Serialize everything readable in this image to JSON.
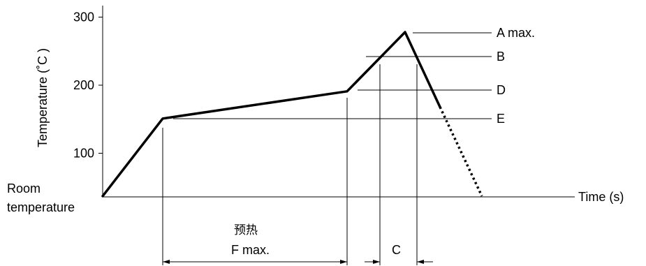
{
  "chart_data": {
    "type": "line",
    "title": "",
    "ylabel": "Temperature (˚C )",
    "xlabel": "Time (s)",
    "room_temperature_label": [
      "Room",
      "temperature"
    ],
    "y_ticks": [
      100,
      200,
      300
    ],
    "ylim": [
      35,
      320
    ],
    "grid": false,
    "profile": {
      "points": [
        {
          "label": "start",
          "y": 37
        },
        {
          "label": "preheat-start",
          "y": 151
        },
        {
          "label": "preheat-end",
          "y": 191
        },
        {
          "label": "peak",
          "y": 278
        },
        {
          "label": "cooling-solid-end",
          "y": 168
        },
        {
          "label": "cooling-end",
          "y": 37
        }
      ]
    },
    "reference_levels": [
      {
        "label": "A max.",
        "y": 278
      },
      {
        "label": "B",
        "y": 244
      },
      {
        "label": "D",
        "y": 194
      },
      {
        "label": "E",
        "y": 151
      }
    ],
    "spans": [
      {
        "label": "F max.",
        "sublabel": "预热"
      },
      {
        "label": "C"
      }
    ]
  }
}
